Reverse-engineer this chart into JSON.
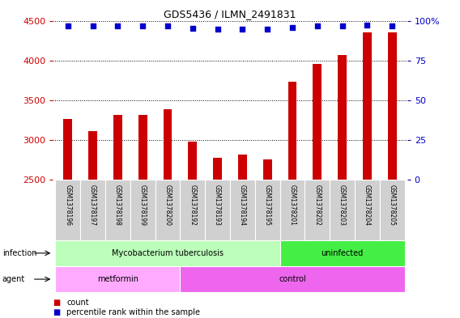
{
  "title": "GDS5436 / ILMN_2491831",
  "samples": [
    "GSM1378196",
    "GSM1378197",
    "GSM1378198",
    "GSM1378199",
    "GSM1378200",
    "GSM1378192",
    "GSM1378193",
    "GSM1378194",
    "GSM1378195",
    "GSM1378201",
    "GSM1378202",
    "GSM1378203",
    "GSM1378204",
    "GSM1378205"
  ],
  "counts": [
    3260,
    3110,
    3310,
    3315,
    3390,
    2980,
    2775,
    2820,
    2755,
    3730,
    3960,
    4070,
    4350,
    4350
  ],
  "percentile_y": [
    4430,
    4430,
    4430,
    4430,
    4430,
    4400,
    4390,
    4390,
    4390,
    4410,
    4430,
    4430,
    4440,
    4430
  ],
  "bar_color": "#cc0000",
  "dot_color": "#0000cc",
  "ylim_left": [
    2500,
    4500
  ],
  "ylim_right": [
    0,
    100
  ],
  "yticks_left": [
    2500,
    3000,
    3500,
    4000,
    4500
  ],
  "yticks_right": [
    0,
    25,
    50,
    75,
    100
  ],
  "yticklabels_right": [
    "0",
    "25",
    "50",
    "75",
    "100%"
  ],
  "infection_groups": [
    {
      "label": "Mycobacterium tuberculosis",
      "start": 0,
      "end": 9,
      "color": "#bbffbb"
    },
    {
      "label": "uninfected",
      "start": 9,
      "end": 14,
      "color": "#44ee44"
    }
  ],
  "agent_groups": [
    {
      "label": "metformin",
      "start": 0,
      "end": 5,
      "color": "#ffaaff"
    },
    {
      "label": "control",
      "start": 5,
      "end": 14,
      "color": "#ee66ee"
    }
  ],
  "infection_label": "infection",
  "agent_label": "agent",
  "legend_count_label": "count",
  "legend_percentile_label": "percentile rank within the sample",
  "bar_color_legend": "#cc0000",
  "dot_color_legend": "#0000cc",
  "tick_label_color_left": "#cc0000",
  "tick_label_color_right": "#0000cc"
}
